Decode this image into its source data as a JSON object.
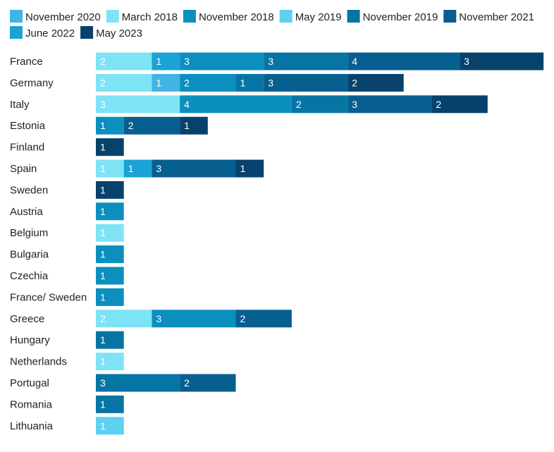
{
  "chart_data": {
    "type": "bar",
    "orientation": "horizontal",
    "stacked": true,
    "grid": false,
    "legend_position": "top",
    "categories": [
      "France",
      "Germany",
      "Italy",
      "Estonia",
      "Finland",
      "Spain",
      "Sweden",
      "Austria",
      "Belgium",
      "Bulgaria",
      "Czechia",
      "France/ Sweden",
      "Greece",
      "Hungary",
      "Netherlands",
      "Portugal",
      "Romania",
      "Lithuania"
    ],
    "series": [
      {
        "name": "March 2018",
        "color": "#7ee3f5",
        "values": [
          2,
          2,
          3,
          0,
          0,
          1,
          0,
          0,
          1,
          0,
          0,
          0,
          2,
          0,
          1,
          0,
          0,
          0
        ]
      },
      {
        "name": "May 2019",
        "color": "#5fd0f0",
        "values": [
          0,
          0,
          0,
          0,
          0,
          0,
          0,
          0,
          0,
          0,
          0,
          0,
          0,
          0,
          0,
          0,
          0,
          1
        ]
      },
      {
        "name": "November 2020",
        "color": "#42b4e4",
        "values": [
          0,
          1,
          0,
          0,
          0,
          0,
          0,
          0,
          0,
          0,
          0,
          0,
          0,
          0,
          0,
          0,
          0,
          0
        ]
      },
      {
        "name": "June 2022",
        "color": "#1aa3d4",
        "values": [
          1,
          0,
          0,
          0,
          0,
          1,
          0,
          0,
          0,
          0,
          0,
          0,
          0,
          0,
          0,
          0,
          0,
          0
        ]
      },
      {
        "name": "November 2018",
        "color": "#0b8fbf",
        "values": [
          3,
          2,
          4,
          1,
          0,
          0,
          0,
          1,
          0,
          1,
          1,
          1,
          3,
          0,
          0,
          0,
          0,
          0
        ]
      },
      {
        "name": "November 2019",
        "color": "#0775a3",
        "values": [
          3,
          1,
          2,
          0,
          0,
          0,
          0,
          0,
          0,
          0,
          0,
          0,
          0,
          1,
          0,
          3,
          1,
          0
        ]
      },
      {
        "name": "November 2021",
        "color": "#075f8f",
        "values": [
          4,
          3,
          3,
          2,
          0,
          3,
          0,
          0,
          0,
          0,
          0,
          0,
          2,
          0,
          0,
          2,
          0,
          0
        ]
      },
      {
        "name": "May 2023",
        "color": "#06426b",
        "values": [
          3,
          2,
          2,
          1,
          1,
          1,
          1,
          0,
          0,
          0,
          0,
          0,
          0,
          0,
          0,
          0,
          0,
          0
        ]
      }
    ],
    "legend": [
      {
        "name": "November 2020",
        "color": "#42b4e4"
      },
      {
        "name": "March 2018",
        "color": "#7ee3f5"
      },
      {
        "name": "November 2018",
        "color": "#0b8fbf"
      },
      {
        "name": "May 2019",
        "color": "#5fd0f0"
      },
      {
        "name": "November 2019",
        "color": "#0775a3"
      },
      {
        "name": "November 2021",
        "color": "#075f8f"
      },
      {
        "name": "June 2022",
        "color": "#1aa3d4"
      },
      {
        "name": "May 2023",
        "color": "#06426b"
      }
    ],
    "xlim": [
      0,
      16
    ]
  }
}
